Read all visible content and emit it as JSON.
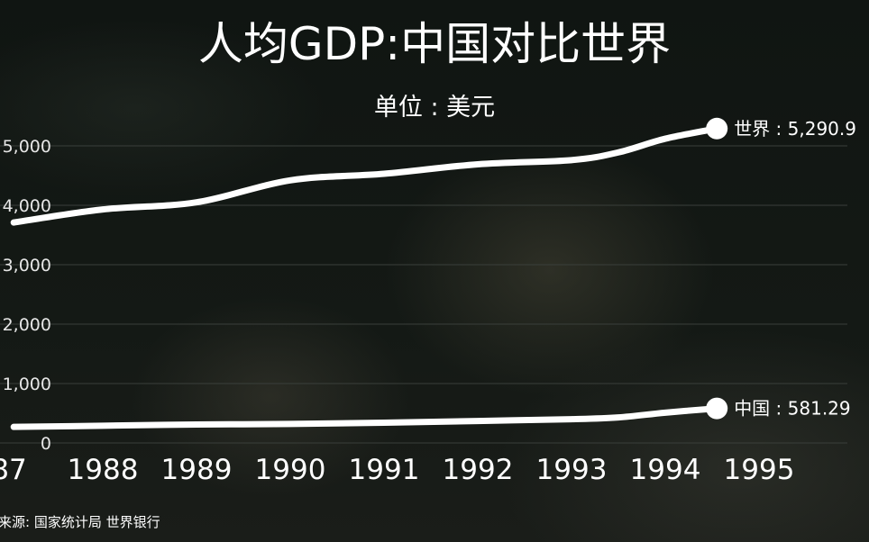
{
  "chart_data": {
    "type": "line",
    "title": "人均GDP:中国对比世界",
    "subtitle": "单位 : 美元",
    "source": "来源: 国家统计局 世界银行",
    "x_tick_labels": [
      "87",
      "1988",
      "1989",
      "1990",
      "1991",
      "1992",
      "1993",
      "1994",
      "1995"
    ],
    "y_ticks": [
      0,
      1000,
      2000,
      3000,
      4000,
      5000
    ],
    "y_tick_labels": [
      "0",
      "1,000",
      "2,000",
      "3,000",
      "4,000",
      "5,000"
    ],
    "ylim": [
      0,
      5500
    ],
    "xlim": [
      1987,
      1995.8
    ],
    "grid": true,
    "series": [
      {
        "name": "世界",
        "end_label": "世界 : 5,290.9",
        "color": "#ffffff",
        "x": [
          1987.05,
          1988,
          1989,
          1990,
          1991,
          1992,
          1993,
          1993.5,
          1994,
          1994.55
        ],
        "y": [
          3710,
          3930,
          4050,
          4420,
          4530,
          4690,
          4760,
          4890,
          5120,
          5290.9
        ]
      },
      {
        "name": "中国",
        "end_label": "中国 : 581.29",
        "color": "#ffffff",
        "x": [
          1987.05,
          1988,
          1989,
          1990,
          1991,
          1992,
          1993,
          1993.5,
          1994,
          1994.55
        ],
        "y": [
          270,
          290,
          310,
          320,
          340,
          370,
          400,
          430,
          510,
          581.29
        ]
      }
    ]
  }
}
